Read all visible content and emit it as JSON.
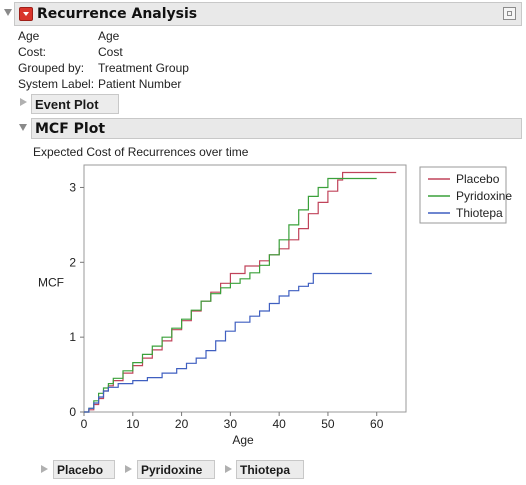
{
  "report": {
    "title": "Recurrence Analysis",
    "info": [
      {
        "label": "Age",
        "value": "Age"
      },
      {
        "label": "Cost:",
        "value": "Cost"
      },
      {
        "label": "Grouped by:",
        "value": "Treatment Group"
      },
      {
        "label": "System Label:",
        "value": "Patient Number"
      }
    ]
  },
  "event_plot": {
    "title": "Event Plot",
    "collapsed": true
  },
  "mcf_plot": {
    "title": "MCF Plot",
    "subtitle": "Expected Cost of Recurrences over time"
  },
  "group_buttons": [
    "Placebo",
    "Pyridoxine",
    "Thiotepa"
  ],
  "colors": {
    "placebo": "#c0435a",
    "pyridoxine": "#3aa03a",
    "thiotepa": "#3f5fc0"
  },
  "chart_data": {
    "type": "line",
    "step": true,
    "xlabel": "Age",
    "ylabel": "MCF",
    "xlim": [
      0,
      66
    ],
    "ylim": [
      0,
      3.3
    ],
    "xticks": [
      0,
      10,
      20,
      30,
      40,
      50,
      60
    ],
    "yticks": [
      0,
      1,
      2,
      3
    ],
    "grid": false,
    "legend_position": "top-right",
    "series": [
      {
        "name": "Placebo",
        "x": [
          1,
          2,
          3,
          4,
          5,
          6,
          8,
          10,
          12,
          14,
          16,
          18,
          20,
          22,
          24,
          26,
          28,
          30,
          33,
          36,
          38,
          40,
          42,
          44,
          46,
          48,
          50,
          52,
          53,
          64
        ],
        "y": [
          0.03,
          0.1,
          0.18,
          0.28,
          0.35,
          0.42,
          0.52,
          0.62,
          0.72,
          0.83,
          0.95,
          1.1,
          1.22,
          1.35,
          1.48,
          1.6,
          1.72,
          1.85,
          1.95,
          2.02,
          2.1,
          2.18,
          2.3,
          2.45,
          2.65,
          2.8,
          2.95,
          3.1,
          3.2,
          3.2
        ]
      },
      {
        "name": "Pyridoxine",
        "x": [
          1,
          2,
          3,
          4,
          5,
          6,
          8,
          10,
          12,
          14,
          16,
          18,
          20,
          22,
          24,
          26,
          28,
          30,
          32,
          34,
          36,
          38,
          40,
          42,
          44,
          46,
          48,
          50,
          56,
          60
        ],
        "y": [
          0.05,
          0.15,
          0.25,
          0.32,
          0.38,
          0.45,
          0.55,
          0.66,
          0.77,
          0.88,
          1.0,
          1.12,
          1.24,
          1.36,
          1.48,
          1.58,
          1.66,
          1.72,
          1.78,
          1.86,
          1.96,
          2.1,
          2.3,
          2.5,
          2.7,
          2.88,
          3.0,
          3.12,
          3.12,
          3.12
        ]
      },
      {
        "name": "Thiotepa",
        "x": [
          1,
          2,
          3,
          4,
          5,
          7,
          10,
          13,
          16,
          19,
          21,
          23,
          25,
          27,
          29,
          31,
          34,
          36,
          38,
          40,
          42,
          44,
          46,
          47,
          52,
          59
        ],
        "y": [
          0.05,
          0.12,
          0.2,
          0.28,
          0.33,
          0.38,
          0.42,
          0.46,
          0.52,
          0.58,
          0.65,
          0.72,
          0.82,
          0.95,
          1.08,
          1.2,
          1.28,
          1.35,
          1.45,
          1.55,
          1.62,
          1.68,
          1.72,
          1.85,
          1.85,
          1.85
        ]
      }
    ]
  }
}
